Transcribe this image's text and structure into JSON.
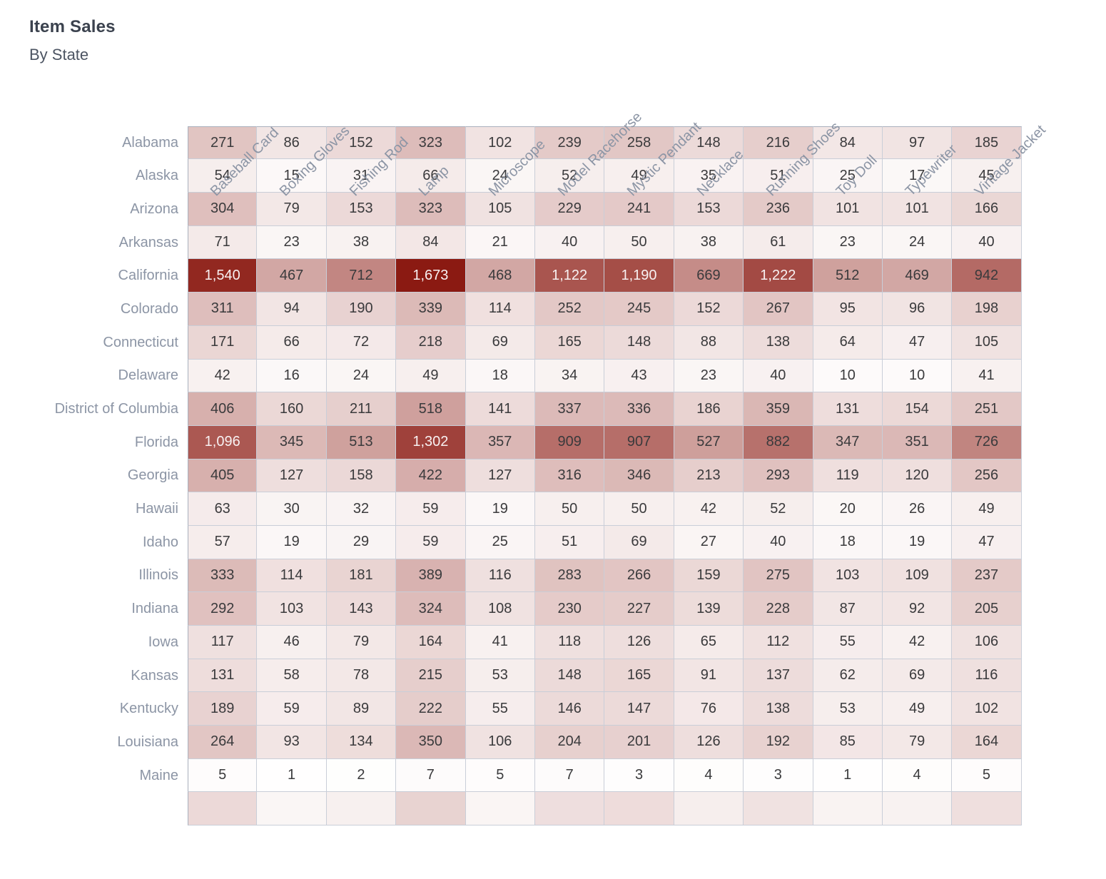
{
  "chart_data": {
    "type": "heatmap",
    "title": "Item Sales",
    "subtitle": "By State",
    "legend_position": "none",
    "grid": true,
    "columns": [
      "Baseball Card",
      "Boxing Gloves",
      "Fishing Rod",
      "Lamp",
      "Microscope",
      "Model Racehorse",
      "Mystic Pendant",
      "Necklace",
      "Running Shoes",
      "Toy Doll",
      "Typewriter",
      "Vintage Jacket"
    ],
    "rows": [
      {
        "state": "Alabama",
        "values": [
          271,
          86,
          152,
          323,
          102,
          239,
          258,
          148,
          216,
          84,
          97,
          185
        ]
      },
      {
        "state": "Alaska",
        "values": [
          54,
          15,
          31,
          66,
          24,
          52,
          49,
          35,
          51,
          25,
          17,
          45
        ]
      },
      {
        "state": "Arizona",
        "values": [
          304,
          79,
          153,
          323,
          105,
          229,
          241,
          153,
          236,
          101,
          101,
          166
        ]
      },
      {
        "state": "Arkansas",
        "values": [
          71,
          23,
          38,
          84,
          21,
          40,
          50,
          38,
          61,
          23,
          24,
          40
        ]
      },
      {
        "state": "California",
        "values": [
          1540,
          467,
          712,
          1673,
          468,
          1122,
          1190,
          669,
          1222,
          512,
          469,
          942
        ]
      },
      {
        "state": "Colorado",
        "values": [
          311,
          94,
          190,
          339,
          114,
          252,
          245,
          152,
          267,
          95,
          96,
          198
        ]
      },
      {
        "state": "Connecticut",
        "values": [
          171,
          66,
          72,
          218,
          69,
          165,
          148,
          88,
          138,
          64,
          47,
          105
        ]
      },
      {
        "state": "Delaware",
        "values": [
          42,
          16,
          24,
          49,
          18,
          34,
          43,
          23,
          40,
          10,
          10,
          41
        ]
      },
      {
        "state": "District of Columbia",
        "values": [
          406,
          160,
          211,
          518,
          141,
          337,
          336,
          186,
          359,
          131,
          154,
          251
        ]
      },
      {
        "state": "Florida",
        "values": [
          1096,
          345,
          513,
          1302,
          357,
          909,
          907,
          527,
          882,
          347,
          351,
          726
        ]
      },
      {
        "state": "Georgia",
        "values": [
          405,
          127,
          158,
          422,
          127,
          316,
          346,
          213,
          293,
          119,
          120,
          256
        ]
      },
      {
        "state": "Hawaii",
        "values": [
          63,
          30,
          32,
          59,
          19,
          50,
          50,
          42,
          52,
          20,
          26,
          49
        ]
      },
      {
        "state": "Idaho",
        "values": [
          57,
          19,
          29,
          59,
          25,
          51,
          69,
          27,
          40,
          18,
          19,
          47
        ]
      },
      {
        "state": "Illinois",
        "values": [
          333,
          114,
          181,
          389,
          116,
          283,
          266,
          159,
          275,
          103,
          109,
          237
        ]
      },
      {
        "state": "Indiana",
        "values": [
          292,
          103,
          143,
          324,
          108,
          230,
          227,
          139,
          228,
          87,
          92,
          205
        ]
      },
      {
        "state": "Iowa",
        "values": [
          117,
          46,
          79,
          164,
          41,
          118,
          126,
          65,
          112,
          55,
          42,
          106
        ]
      },
      {
        "state": "Kansas",
        "values": [
          131,
          58,
          78,
          215,
          53,
          148,
          165,
          91,
          137,
          62,
          69,
          116
        ]
      },
      {
        "state": "Kentucky",
        "values": [
          189,
          59,
          89,
          222,
          55,
          146,
          147,
          76,
          138,
          53,
          49,
          102
        ]
      },
      {
        "state": "Louisiana",
        "values": [
          264,
          93,
          134,
          350,
          106,
          204,
          201,
          126,
          192,
          85,
          79,
          164
        ]
      },
      {
        "state": "Maine",
        "values": [
          5,
          1,
          2,
          7,
          5,
          7,
          3,
          4,
          3,
          1,
          4,
          5
        ]
      }
    ],
    "clipped_next_row_colors": [
      "#ecd9d8",
      "#faf6f5",
      "#f7f0ef",
      "#e8d3d1",
      "#faf5f4",
      "#eedede",
      "#eedcdb",
      "#f6eeed",
      "#f0e2e1",
      "#f9f3f2",
      "#f8f2f1",
      "#efdfde"
    ],
    "value_range": [
      1,
      1673
    ],
    "color_scale": {
      "min_color": "#ffffff",
      "max_color": "#8b1a12",
      "max_value": 1673,
      "gamma": 0.75,
      "light_text_threshold": 0.7
    }
  }
}
